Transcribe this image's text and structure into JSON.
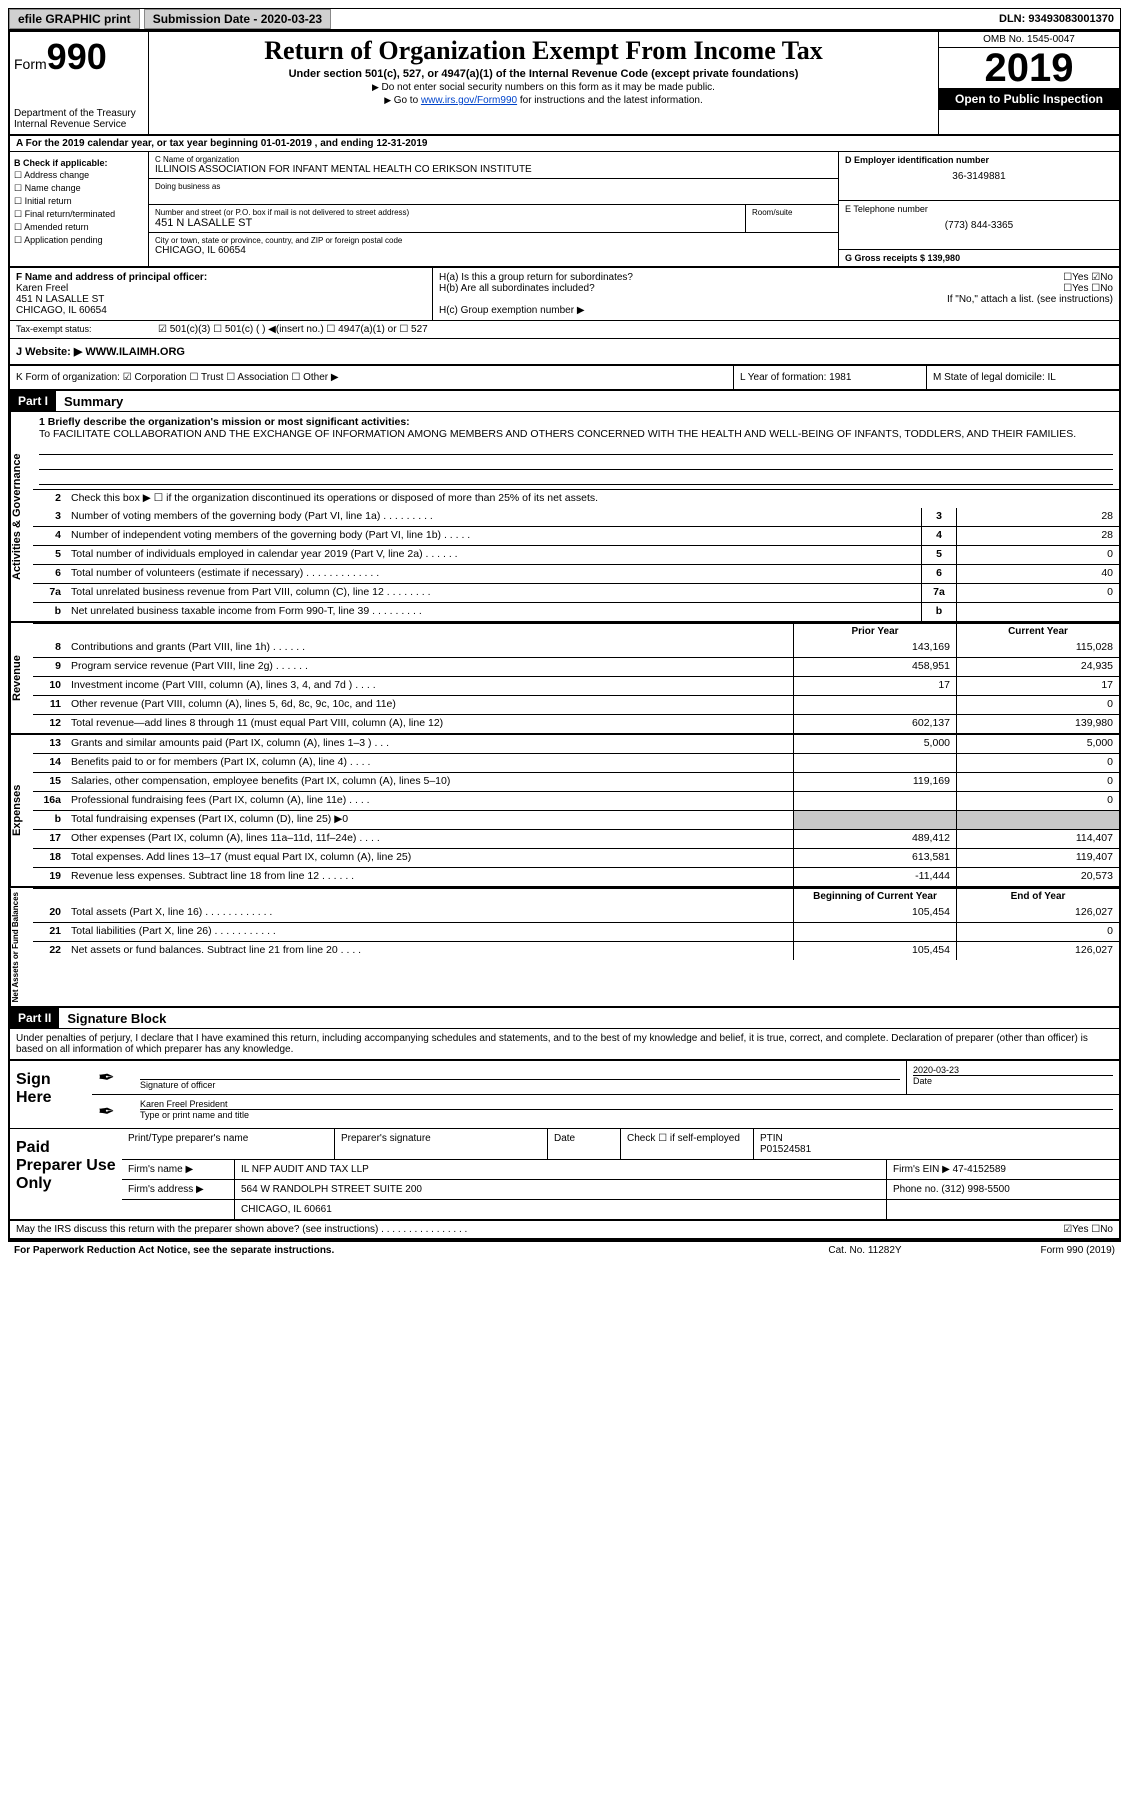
{
  "topbar": {
    "efile": "efile GRAPHIC print",
    "sub_label": "Submission Date - 2020-03-23",
    "dln": "DLN: 93493083001370"
  },
  "header": {
    "form_label": "Form",
    "form_num": "990",
    "dept": "Department of the Treasury\nInternal Revenue Service",
    "title": "Return of Organization Exempt From Income Tax",
    "subtitle": "Under section 501(c), 527, or 4947(a)(1) of the Internal Revenue Code (except private foundations)",
    "note1": "Do not enter social security numbers on this form as it may be made public.",
    "note2_pre": "Go to ",
    "note2_link": "www.irs.gov/Form990",
    "note2_post": " for instructions and the latest information.",
    "omb": "OMB No. 1545-0047",
    "year": "2019",
    "inspect": "Open to Public Inspection"
  },
  "rowA": "A For the 2019 calendar year, or tax year beginning 01-01-2019    , and ending 12-31-2019",
  "colB": {
    "title": "B Check if applicable:",
    "items": [
      "Address change",
      "Name change",
      "Initial return",
      "Final return/terminated",
      "Amended return",
      "Application pending"
    ]
  },
  "colC": {
    "name_lbl": "C Name of organization",
    "name": "ILLINOIS ASSOCIATION FOR INFANT MENTAL HEALTH CO ERIKSON INSTITUTE",
    "dba_lbl": "Doing business as",
    "addr_lbl": "Number and street (or P.O. box if mail is not delivered to street address)",
    "addr": "451 N LASALLE ST",
    "room_lbl": "Room/suite",
    "city_lbl": "City or town, state or province, country, and ZIP or foreign postal code",
    "city": "CHICAGO, IL  60654"
  },
  "colD": {
    "ein_lbl": "D Employer identification number",
    "ein": "36-3149881",
    "tel_lbl": "E Telephone number",
    "tel": "(773) 844-3365",
    "gross_lbl": "G Gross receipts $ 139,980"
  },
  "rowF": {
    "f_lbl": "F Name and address of principal officer:",
    "f_name": "Karen Freel",
    "f_addr": "451 N LASALLE ST\nCHICAGO, IL  60654",
    "ha": "H(a)  Is this a group return for subordinates?",
    "ha_ans": "☐Yes ☑No",
    "hb": "H(b)  Are all subordinates included?",
    "hb_ans": "☐Yes ☐No",
    "hb_note": "If \"No,\" attach a list. (see instructions)",
    "hc": "H(c)  Group exemption number ▶"
  },
  "taxexempt": {
    "label": "Tax-exempt status:",
    "opts": "☑ 501(c)(3)   ☐ 501(c) (  ) ◀(insert no.)   ☐ 4947(a)(1) or   ☐ 527"
  },
  "website": {
    "label": "J  Website: ▶",
    "value": "WWW.ILAIMH.ORG"
  },
  "rowK": {
    "k": "K Form of organization:  ☑ Corporation  ☐ Trust  ☐ Association  ☐ Other ▶",
    "l": "L Year of formation: 1981",
    "m": "M State of legal domicile: IL"
  },
  "part1": {
    "label": "Part I",
    "title": "Summary",
    "mission_lbl": "1  Briefly describe the organization's mission or most significant activities:",
    "mission": "To FACILITATE COLLABORATION AND THE EXCHANGE OF INFORMATION AMONG MEMBERS AND OTHERS CONCERNED WITH THE HEALTH AND WELL-BEING OF INFANTS, TODDLERS, AND THEIR FAMILIES.",
    "line2": "Check this box ▶ ☐  if the organization discontinued its operations or disposed of more than 25% of its net assets."
  },
  "governance": [
    {
      "n": "3",
      "d": "Number of voting members of the governing body (Part VI, line 1a)  .  .  .  .  .  .  .  .  .",
      "v": "28"
    },
    {
      "n": "4",
      "d": "Number of independent voting members of the governing body (Part VI, line 1b)  .  .  .  .  .",
      "v": "28"
    },
    {
      "n": "5",
      "d": "Total number of individuals employed in calendar year 2019 (Part V, line 2a)  .  .  .  .  .  .",
      "v": "0"
    },
    {
      "n": "6",
      "d": "Total number of volunteers (estimate if necessary)  .  .  .  .  .  .  .  .  .  .  .  .  .",
      "v": "40"
    },
    {
      "n": "7a",
      "d": "Total unrelated business revenue from Part VIII, column (C), line 12  .  .  .  .  .  .  .  .",
      "v": "0"
    },
    {
      "n": "b",
      "d": "Net unrelated business taxable income from Form 990-T, line 39  .  .  .  .  .  .  .  .  .",
      "v": ""
    }
  ],
  "col_headers": {
    "prior": "Prior Year",
    "current": "Current Year"
  },
  "revenue": [
    {
      "n": "8",
      "d": "Contributions and grants (Part VIII, line 1h)  .  .  .  .  .  .",
      "p": "143,169",
      "c": "115,028"
    },
    {
      "n": "9",
      "d": "Program service revenue (Part VIII, line 2g)  .  .  .  .  .  .",
      "p": "458,951",
      "c": "24,935"
    },
    {
      "n": "10",
      "d": "Investment income (Part VIII, column (A), lines 3, 4, and 7d )  .  .  .  .",
      "p": "17",
      "c": "17"
    },
    {
      "n": "11",
      "d": "Other revenue (Part VIII, column (A), lines 5, 6d, 8c, 9c, 10c, and 11e)",
      "p": "",
      "c": "0"
    },
    {
      "n": "12",
      "d": "Total revenue—add lines 8 through 11 (must equal Part VIII, column (A), line 12)",
      "p": "602,137",
      "c": "139,980"
    }
  ],
  "expenses": [
    {
      "n": "13",
      "d": "Grants and similar amounts paid (Part IX, column (A), lines 1–3 )  .  .  .",
      "p": "5,000",
      "c": "5,000"
    },
    {
      "n": "14",
      "d": "Benefits paid to or for members (Part IX, column (A), line 4)  .  .  .  .",
      "p": "",
      "c": "0"
    },
    {
      "n": "15",
      "d": "Salaries, other compensation, employee benefits (Part IX, column (A), lines 5–10)",
      "p": "119,169",
      "c": "0"
    },
    {
      "n": "16a",
      "d": "Professional fundraising fees (Part IX, column (A), line 11e)  .  .  .  .",
      "p": "",
      "c": "0"
    },
    {
      "n": "b",
      "d": "Total fundraising expenses (Part IX, column (D), line 25) ▶0",
      "p": "__grey__",
      "c": "__grey__"
    },
    {
      "n": "17",
      "d": "Other expenses (Part IX, column (A), lines 11a–11d, 11f–24e)  .  .  .  .",
      "p": "489,412",
      "c": "114,407"
    },
    {
      "n": "18",
      "d": "Total expenses. Add lines 13–17 (must equal Part IX, column (A), line 25)",
      "p": "613,581",
      "c": "119,407"
    },
    {
      "n": "19",
      "d": "Revenue less expenses. Subtract line 18 from line 12  .  .  .  .  .  .",
      "p": "-11,444",
      "c": "20,573"
    }
  ],
  "net_headers": {
    "b": "Beginning of Current Year",
    "e": "End of Year"
  },
  "netassets": [
    {
      "n": "20",
      "d": "Total assets (Part X, line 16)  .  .  .  .  .  .  .  .  .  .  .  .",
      "p": "105,454",
      "c": "126,027"
    },
    {
      "n": "21",
      "d": "Total liabilities (Part X, line 26)  .  .  .  .  .  .  .  .  .  .  .",
      "p": "",
      "c": "0"
    },
    {
      "n": "22",
      "d": "Net assets or fund balances. Subtract line 21 from line 20  .  .  .  .",
      "p": "105,454",
      "c": "126,027"
    }
  ],
  "part2": {
    "label": "Part II",
    "title": "Signature Block",
    "decl": "Under penalties of perjury, I declare that I have examined this return, including accompanying schedules and statements, and to the best of my knowledge and belief, it is true, correct, and complete. Declaration of preparer (other than officer) is based on all information of which preparer has any knowledge."
  },
  "sign": {
    "here": "Sign Here",
    "sig_lbl": "Signature of officer",
    "date": "2020-03-23",
    "date_lbl": "Date",
    "name": "Karen Freel  President",
    "name_lbl": "Type or print name and title"
  },
  "prep": {
    "label": "Paid Preparer Use Only",
    "h1": "Print/Type preparer's name",
    "h2": "Preparer's signature",
    "h3": "Date",
    "h4": "Check ☐ if self-employed",
    "h5_lbl": "PTIN",
    "h5": "P01524581",
    "firm_lbl": "Firm's name    ▶",
    "firm": "IL NFP AUDIT AND TAX LLP",
    "ein_lbl": "Firm's EIN ▶",
    "ein": "47-4152589",
    "addr_lbl": "Firm's address ▶",
    "addr": "564 W RANDOLPH STREET SUITE 200",
    "addr2": "CHICAGO, IL  60661",
    "phone_lbl": "Phone no.",
    "phone": "(312) 998-5500"
  },
  "discuss": "May the IRS discuss this return with the preparer shown above? (see instructions)  .  .  .  .  .  .  .  .  .  .  .  .  .  .  .  .",
  "discuss_ans": "☑Yes  ☐No",
  "footer": {
    "pra": "For Paperwork Reduction Act Notice, see the separate instructions.",
    "cat": "Cat. No. 11282Y",
    "form": "Form 990 (2019)"
  }
}
